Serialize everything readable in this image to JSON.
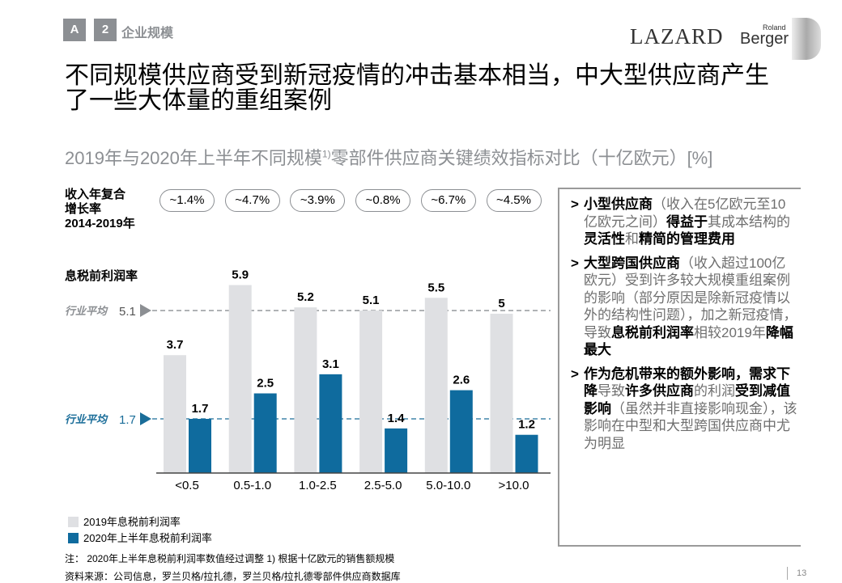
{
  "header": {
    "tag_a": "A",
    "tag_num": "2",
    "section": "企业规模",
    "logo_lazard": "LAZARD",
    "logo_roland": "Roland",
    "logo_berger": "Berger"
  },
  "title_lines": [
    "不同规模供应商受到新冠疫情的冲击基本相当，中大型供应商产生",
    "了一些大体量的重组案例"
  ],
  "subtitle": "2019年与2020年上半年不同规模",
  "subtitle_sup": "1)",
  "subtitle_rest": "零部件供应商关键绩效指标对比（十亿欧元）[%]",
  "cagr": {
    "label_lines": [
      "收入年复合",
      "增长率",
      "2014-2019年"
    ],
    "values": [
      "~1.4%",
      "~4.7%",
      "~3.9%",
      "~0.8%",
      "~6.7%",
      "~4.5%"
    ]
  },
  "chart_data": {
    "type": "bar",
    "ylabel": "息税前利润率",
    "categories": [
      "<0.5",
      "0.5-1.0",
      "1.0-2.5",
      "2.5-5.0",
      "5.0-10.0",
      ">10.0"
    ],
    "series": [
      {
        "name": "2019年息税前利润率",
        "values": [
          3.7,
          5.9,
          5.2,
          5.1,
          5.5,
          5.0
        ],
        "color": "#dfe0e3"
      },
      {
        "name": "2020年上半年息税前利润率",
        "values": [
          1.7,
          2.5,
          3.1,
          1.4,
          2.6,
          1.2
        ],
        "color": "#0f6b9e"
      }
    ],
    "reference_lines": [
      {
        "label": "行业平均",
        "value": 5.1,
        "value_label": "5.1",
        "color": "#8c8f93"
      },
      {
        "label": "行业平均",
        "value": 1.7,
        "value_label": "1.7",
        "color": "#1a6d99"
      }
    ],
    "ylim": [
      0,
      6.2
    ],
    "grid": false,
    "legend": "bottom-left"
  },
  "sidebar": {
    "items": [
      [
        [
          "b",
          "小型供应商"
        ],
        [
          "n",
          "（收入在5亿欧元至10亿欧元之间）"
        ],
        [
          "b",
          "得益于"
        ],
        [
          "n",
          "其成本结构的"
        ],
        [
          "b",
          "灵活性"
        ],
        [
          "n",
          "和"
        ],
        [
          "b",
          "精简的管理费用"
        ]
      ],
      [
        [
          "b",
          "大型跨国供应商"
        ],
        [
          "n",
          "（收入超过100亿欧元）受到许多较大规模重组案例的影响（部分原因是除新冠疫情以外的结构性问题），加之新冠疫情，导致"
        ],
        [
          "b",
          "息税前利润率"
        ],
        [
          "n",
          "相较2019年"
        ],
        [
          "b",
          "降幅最大"
        ]
      ],
      [
        [
          "b",
          "作为危机带来的额外影响，需求下降"
        ],
        [
          "n",
          "导致"
        ],
        [
          "b",
          "许多供应商"
        ],
        [
          "n",
          "的利润"
        ],
        [
          "b",
          "受到减值影响"
        ],
        [
          "n",
          "（虽然并非直接影响现金），该影响在中型和大型跨国供应商中尤为明显"
        ]
      ]
    ]
  },
  "footer": {
    "note": "注：  2020年上半年息税前利润率数值经过调整  1) 根据十亿欧元的销售额规模",
    "source": "资料来源：公司信息，罗兰贝格/拉扎德，罗兰贝格/拉扎德零部件供应商数据库",
    "page": "13"
  }
}
